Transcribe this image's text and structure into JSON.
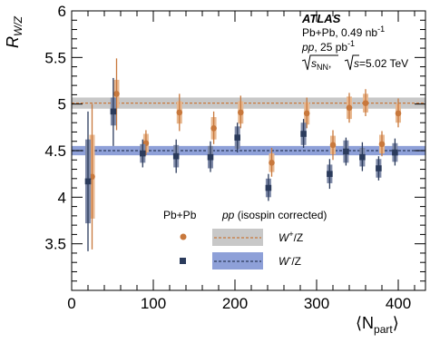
{
  "chart_data": {
    "type": "scatter",
    "xlabel": "⟨N",
    "xlabel_sub": "part",
    "xlabel_close": "⟩",
    "ylabel": "R",
    "ylabel_sub": "W/Z",
    "xlim": [
      0,
      430
    ],
    "ylim": [
      3.0,
      6.0
    ],
    "x_ticks": [
      0,
      100,
      200,
      300,
      400
    ],
    "x_tick_labels": [
      "0",
      "100",
      "200",
      "300",
      "400"
    ],
    "y_ticks": [
      3.5,
      4.0,
      4.5,
      5.0,
      5.5,
      6.0
    ],
    "y_tick_labels": [
      "3.5",
      "4",
      "4.5",
      "5",
      "5.5",
      "6"
    ],
    "annotations": {
      "experiment": "ATLAS",
      "line1": "Pb+Pb, 0.49 nb",
      "line1_sup": "-1",
      "line2_a": "pp",
      "line2_b": ", 25 pb",
      "line2_sup": "-1",
      "line3_a": "s",
      "line3_sub": "NN",
      "line3_b": ", ",
      "line3_c": "s",
      "line3_d": "=5.02 TeV"
    },
    "legend": {
      "col1": "Pb+Pb",
      "col2_a": "pp",
      "col2_b": " (isospin corrected)",
      "row1_a": "W",
      "row1_sup": "+",
      "row1_b": "/Z",
      "row2_a": "W",
      "row2_sup": "-",
      "row2_b": "/Z"
    },
    "series": [
      {
        "name": "W+/Z",
        "color": "#c8783c",
        "band_color": "#c8c8c8",
        "pp_value": 5.01,
        "pp_band": [
          4.95,
          5.07
        ],
        "points": [
          {
            "x": 25,
            "y": 4.22,
            "stat_lo": 3.44,
            "stat_hi": 5.0,
            "syst": 0.45
          },
          {
            "x": 55,
            "y": 5.11,
            "stat_lo": 4.72,
            "stat_hi": 5.49,
            "syst": 0.15
          },
          {
            "x": 91,
            "y": 4.58,
            "stat_lo": 4.45,
            "stat_hi": 4.72,
            "syst": 0.1
          },
          {
            "x": 132,
            "y": 4.91,
            "stat_lo": 4.71,
            "stat_hi": 5.11,
            "syst": 0.12
          },
          {
            "x": 174,
            "y": 4.74,
            "stat_lo": 4.57,
            "stat_hi": 4.92,
            "syst": 0.12
          },
          {
            "x": 207,
            "y": 4.91,
            "stat_lo": 4.74,
            "stat_hi": 5.09,
            "syst": 0.12
          },
          {
            "x": 245,
            "y": 4.37,
            "stat_lo": 4.22,
            "stat_hi": 4.53,
            "syst": 0.1
          },
          {
            "x": 288,
            "y": 4.9,
            "stat_lo": 4.74,
            "stat_hi": 5.07,
            "syst": 0.12
          },
          {
            "x": 320,
            "y": 4.56,
            "stat_lo": 4.4,
            "stat_hi": 4.72,
            "syst": 0.1
          },
          {
            "x": 340,
            "y": 4.96,
            "stat_lo": 4.8,
            "stat_hi": 5.12,
            "syst": 0.12
          },
          {
            "x": 360,
            "y": 5.01,
            "stat_lo": 4.87,
            "stat_hi": 5.16,
            "syst": 0.1
          },
          {
            "x": 380,
            "y": 4.57,
            "stat_lo": 4.44,
            "stat_hi": 4.71,
            "syst": 0.1
          },
          {
            "x": 400,
            "y": 4.9,
            "stat_lo": 4.75,
            "stat_hi": 5.06,
            "syst": 0.1
          }
        ]
      },
      {
        "name": "W-/Z",
        "color": "#2b3b5c",
        "band_color": "#8ea0d8",
        "pp_value": 4.5,
        "pp_band": [
          4.45,
          4.55
        ],
        "points": [
          {
            "x": 20,
            "y": 4.17,
            "stat_lo": 3.42,
            "stat_hi": 4.92,
            "syst": 0.45
          },
          {
            "x": 51,
            "y": 4.92,
            "stat_lo": 4.55,
            "stat_hi": 5.28,
            "syst": 0.15
          },
          {
            "x": 87,
            "y": 4.47,
            "stat_lo": 4.32,
            "stat_hi": 4.62,
            "syst": 0.1
          },
          {
            "x": 128,
            "y": 4.44,
            "stat_lo": 4.26,
            "stat_hi": 4.62,
            "syst": 0.12
          },
          {
            "x": 170,
            "y": 4.43,
            "stat_lo": 4.27,
            "stat_hi": 4.6,
            "syst": 0.12
          },
          {
            "x": 203,
            "y": 4.64,
            "stat_lo": 4.48,
            "stat_hi": 4.8,
            "syst": 0.12
          },
          {
            "x": 241,
            "y": 4.1,
            "stat_lo": 3.96,
            "stat_hi": 4.25,
            "syst": 0.1
          },
          {
            "x": 284,
            "y": 4.68,
            "stat_lo": 4.53,
            "stat_hi": 4.84,
            "syst": 0.12
          },
          {
            "x": 316,
            "y": 4.25,
            "stat_lo": 4.09,
            "stat_hi": 4.41,
            "syst": 0.1
          },
          {
            "x": 336,
            "y": 4.49,
            "stat_lo": 4.34,
            "stat_hi": 4.64,
            "syst": 0.12
          },
          {
            "x": 356,
            "y": 4.43,
            "stat_lo": 4.28,
            "stat_hi": 4.59,
            "syst": 0.1
          },
          {
            "x": 376,
            "y": 4.31,
            "stat_lo": 4.18,
            "stat_hi": 4.44,
            "syst": 0.1
          },
          {
            "x": 396,
            "y": 4.48,
            "stat_lo": 4.34,
            "stat_hi": 4.63,
            "syst": 0.1
          }
        ]
      }
    ]
  }
}
